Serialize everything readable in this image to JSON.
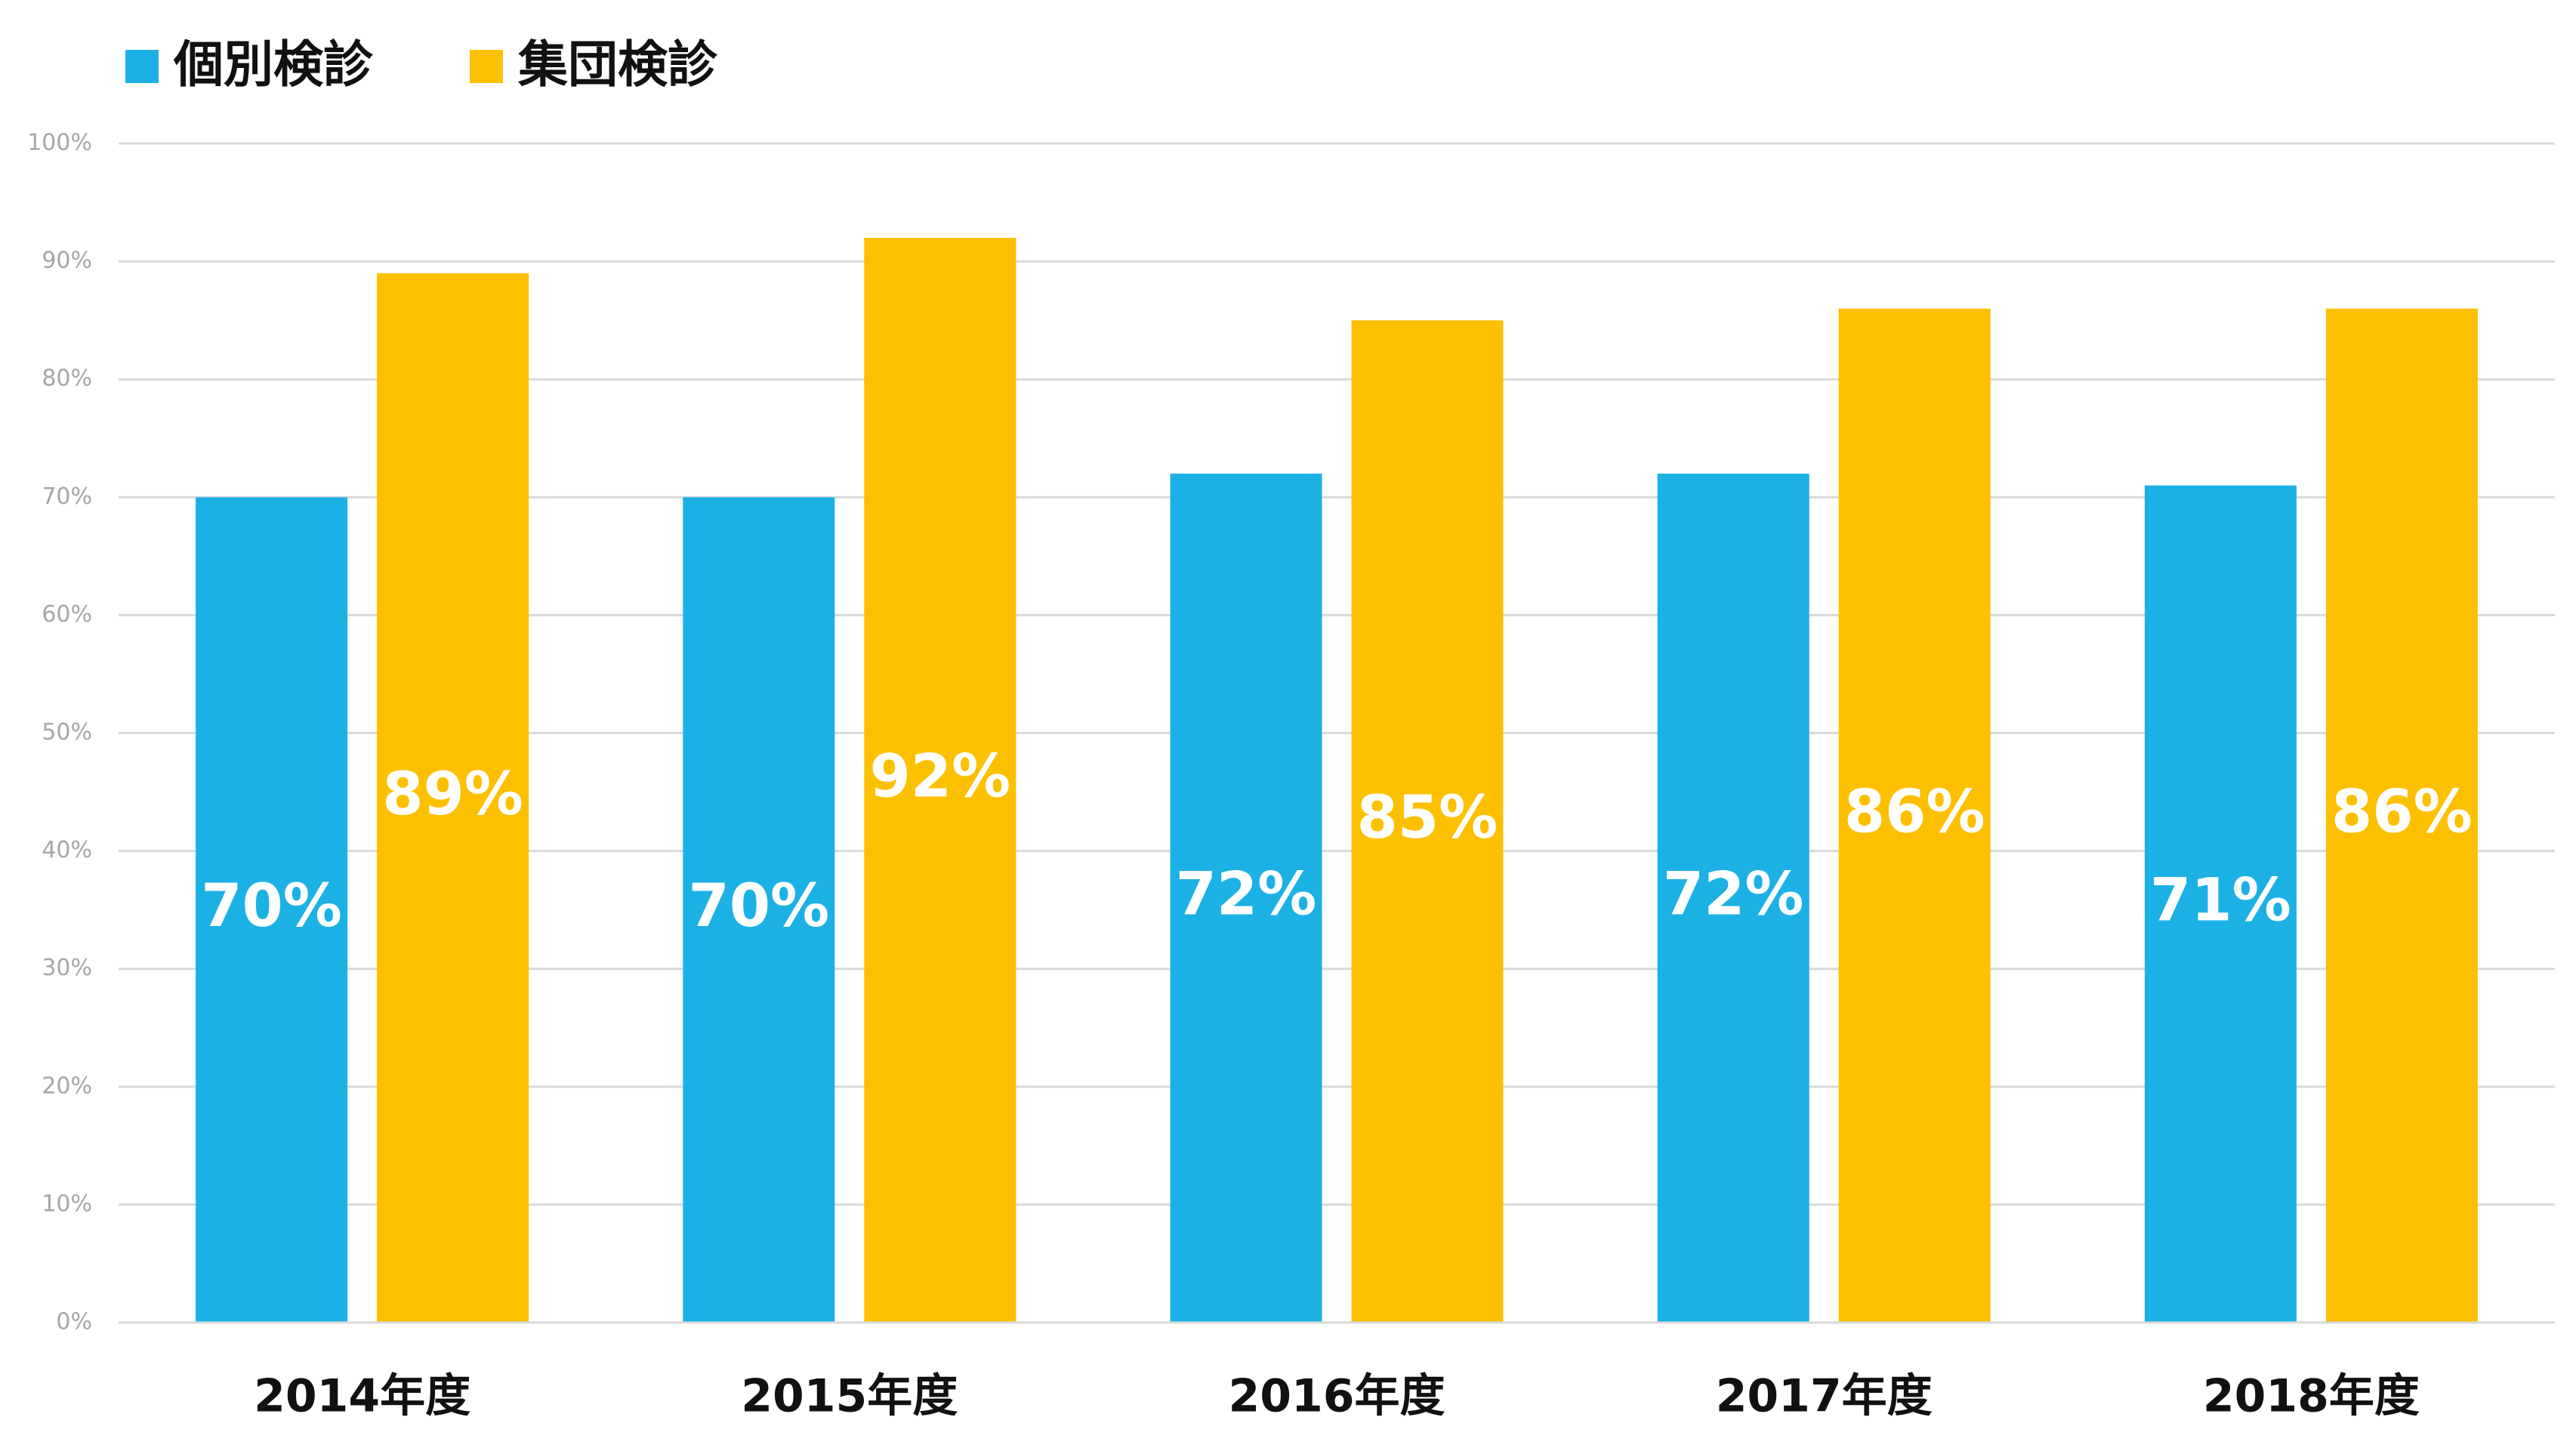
{
  "chart_data": {
    "type": "bar",
    "categories": [
      "2014年度",
      "2015年度",
      "2016年度",
      "2017年度",
      "2018年度"
    ],
    "series": [
      {
        "name": "個別検診",
        "color": "#1cb1e5",
        "values": [
          70,
          70,
          72,
          72,
          71
        ],
        "value_labels": [
          "70%",
          "70%",
          "72%",
          "72%",
          "71%"
        ]
      },
      {
        "name": "集団検診",
        "color": "#fdc000",
        "values": [
          89,
          92,
          85,
          86,
          86
        ],
        "value_labels": [
          "89%",
          "92%",
          "85%",
          "86%",
          "86%"
        ]
      }
    ],
    "ylim": [
      0,
      100
    ],
    "yticks": [
      {
        "value": 0,
        "label": "0%"
      },
      {
        "value": 10,
        "label": "10%"
      },
      {
        "value": 20,
        "label": "20%"
      },
      {
        "value": 30,
        "label": "30%"
      },
      {
        "value": 40,
        "label": "40%"
      },
      {
        "value": 50,
        "label": "50%"
      },
      {
        "value": 60,
        "label": "60%"
      },
      {
        "value": 70,
        "label": "70%"
      },
      {
        "value": 80,
        "label": "80%"
      },
      {
        "value": 90,
        "label": "90%"
      },
      {
        "value": 100,
        "label": "100%"
      }
    ],
    "grid": true,
    "legend": "top-left"
  }
}
